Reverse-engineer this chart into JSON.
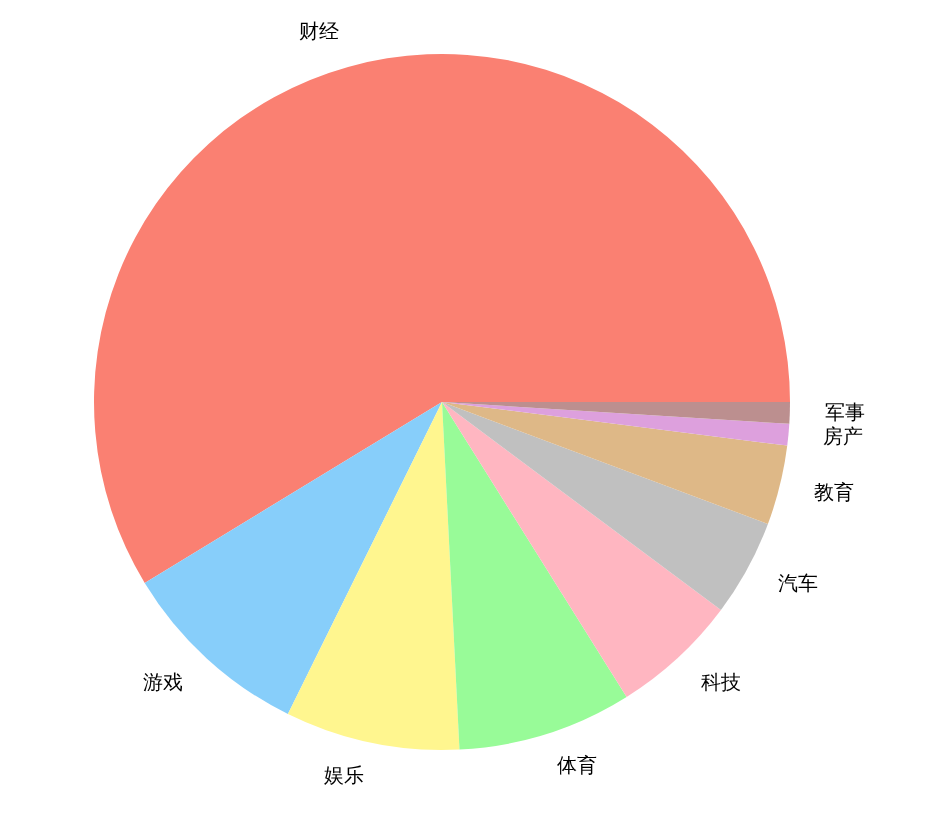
{
  "chart_data": {
    "type": "pie",
    "categories": [
      "财经",
      "游戏",
      "娱乐",
      "体育",
      "科技",
      "汽车",
      "教育",
      "房产",
      "军事"
    ],
    "values": [
      58.7,
      9.0,
      8.1,
      8.1,
      5.9,
      4.5,
      3.7,
      1.0,
      1.0
    ],
    "colors": [
      "#fa8072",
      "#87cefa",
      "#fff68f",
      "#98fb98",
      "#ffb6c1",
      "#c0c0c0",
      "#deb887",
      "#dda0dd",
      "#bc8f8f"
    ]
  }
}
